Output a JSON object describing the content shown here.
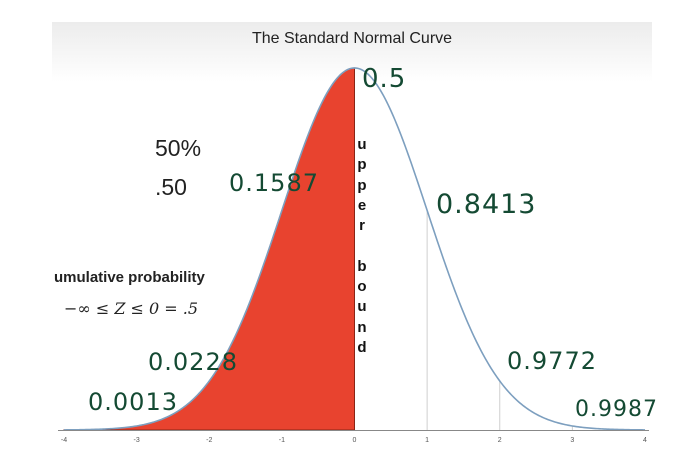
{
  "chart_data": {
    "type": "area",
    "title": "The Standard Normal Curve",
    "x_range": [
      -4,
      4
    ],
    "y_range": [
      0,
      0.4
    ],
    "x_ticks": [
      "-4",
      "-3",
      "-2",
      "-1",
      "0",
      "1",
      "2",
      "3",
      "4"
    ],
    "shaded_region": [
      -4,
      0
    ],
    "shade_color": "#e8432f",
    "curve_color": "#7d9fbf",
    "grid": "vertical",
    "series": [
      {
        "x": [
          -4,
          -3,
          -2,
          -1,
          0,
          1,
          2,
          3,
          4
        ],
        "y": [
          0.0001,
          0.0044,
          0.054,
          0.242,
          0.399,
          0.242,
          0.054,
          0.0044,
          0.0001
        ]
      }
    ]
  },
  "annotations": {
    "percent": "50%",
    "decimal": ".50",
    "cumulative_label": "umulative probability",
    "inequality": "−∞ ≤ Z ≤ 0 = .5",
    "vertical_word": [
      "u",
      "p",
      "p",
      "e",
      "r",
      "",
      "b",
      "o",
      "u",
      "n",
      "d"
    ]
  },
  "handwritten": {
    "at_0": "0.5",
    "at_neg1": "0.1587",
    "at_1": "0.8413",
    "at_neg2": "0.0228",
    "at_2": "0.9772",
    "at_neg3": "0.0013",
    "at_3": "0.9987"
  }
}
